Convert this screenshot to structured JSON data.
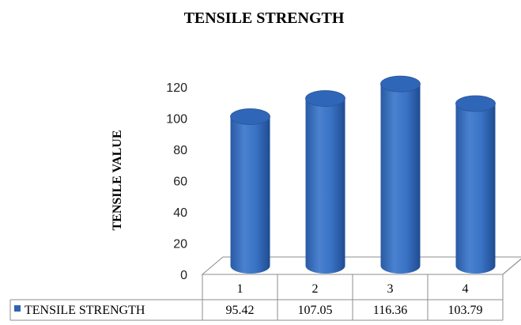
{
  "chart_data": {
    "type": "bar",
    "title": "TENSILE STRENGTH",
    "xlabel": "",
    "ylabel": "TENSILE VALUE",
    "categories": [
      "1",
      "2",
      "3",
      "4"
    ],
    "series": [
      {
        "name": "TENSILE STRENGTH",
        "values": [
          95.42,
          107.05,
          116.36,
          103.79
        ]
      }
    ],
    "ylim": [
      0,
      120
    ],
    "yticks": [
      0,
      20,
      40,
      60,
      80,
      100,
      120
    ],
    "data_table": true,
    "bar_shape": "cylinder",
    "bar_color": "#2e64b4",
    "grid": false,
    "legend": "data-table"
  },
  "table": {
    "legend_label": "TENSILE STRENGTH",
    "values": [
      "95.42",
      "107.05",
      "116.36",
      "103.79"
    ]
  }
}
